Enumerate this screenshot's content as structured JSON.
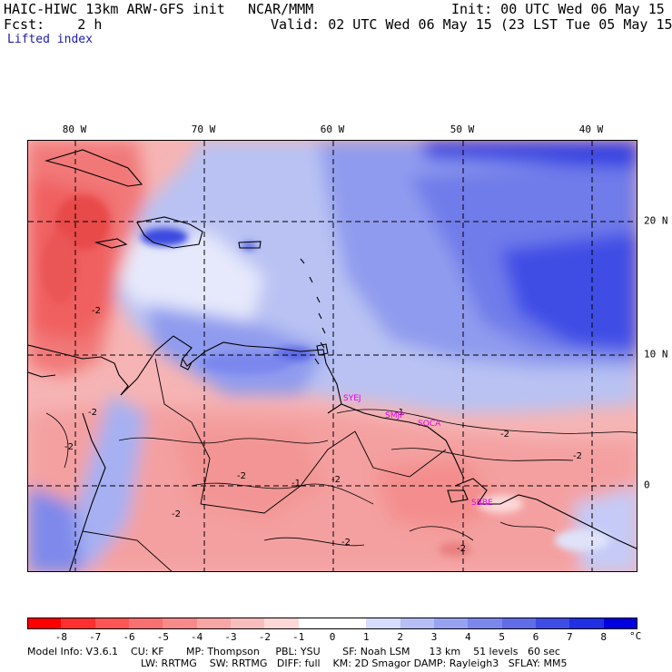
{
  "header": {
    "model": "HAIC-HIWC 13km ARW-GFS init",
    "org": "NCAR/MMM",
    "init": "Init: 00 UTC Wed 06 May 15",
    "fcst": "Fcst:    2 h",
    "valid": "Valid: 02 UTC Wed 06 May 15 (23 LST Tue 05 May 15)",
    "field": "Lifted index"
  },
  "map": {
    "lon_labels": [
      "80 W",
      "70 W",
      "60 W",
      "50 W",
      "40 W"
    ],
    "lat_labels": [
      "20 N",
      "10 N",
      "0"
    ],
    "stations": [
      "SYEJ",
      "SMJP",
      "SOCA",
      "SBBE"
    ],
    "contour_labels": [
      "-2",
      "-2",
      "-2",
      "-2",
      "-2",
      "-2",
      "-2",
      "-2",
      "-2",
      "-2",
      "-1",
      "-1"
    ]
  },
  "colorbar": {
    "labels": [
      "-8",
      "-7",
      "-6",
      "-5",
      "-4",
      "-3",
      "-2",
      "-1",
      "0",
      "1",
      "2",
      "3",
      "4",
      "5",
      "6",
      "7",
      "8"
    ],
    "unit": "°C",
    "colors": [
      "#ff0000",
      "#ff3030",
      "#ff5555",
      "#f87070",
      "#f88a8a",
      "#f8a5a5",
      "#f8bebe",
      "#fcd8d8",
      "#ffffff",
      "#ffffff",
      "#d6dcfa",
      "#b5bff5",
      "#97a3f2",
      "#7c87ee",
      "#606ce8",
      "#3f4de6",
      "#2030e2",
      "#0000e0"
    ]
  },
  "footer": {
    "line1": "Model Info: V3.6.1    CU: KF       MP: Thompson     PBL: YSU       SF: Noah LSM      13 km    51 levels   60 sec",
    "line2": "LW: RRTMG    SW: RRTMG   DIFF: full    KM: 2D Smagor DAMP: Rayleigh3   SFLAY: MM5"
  }
}
